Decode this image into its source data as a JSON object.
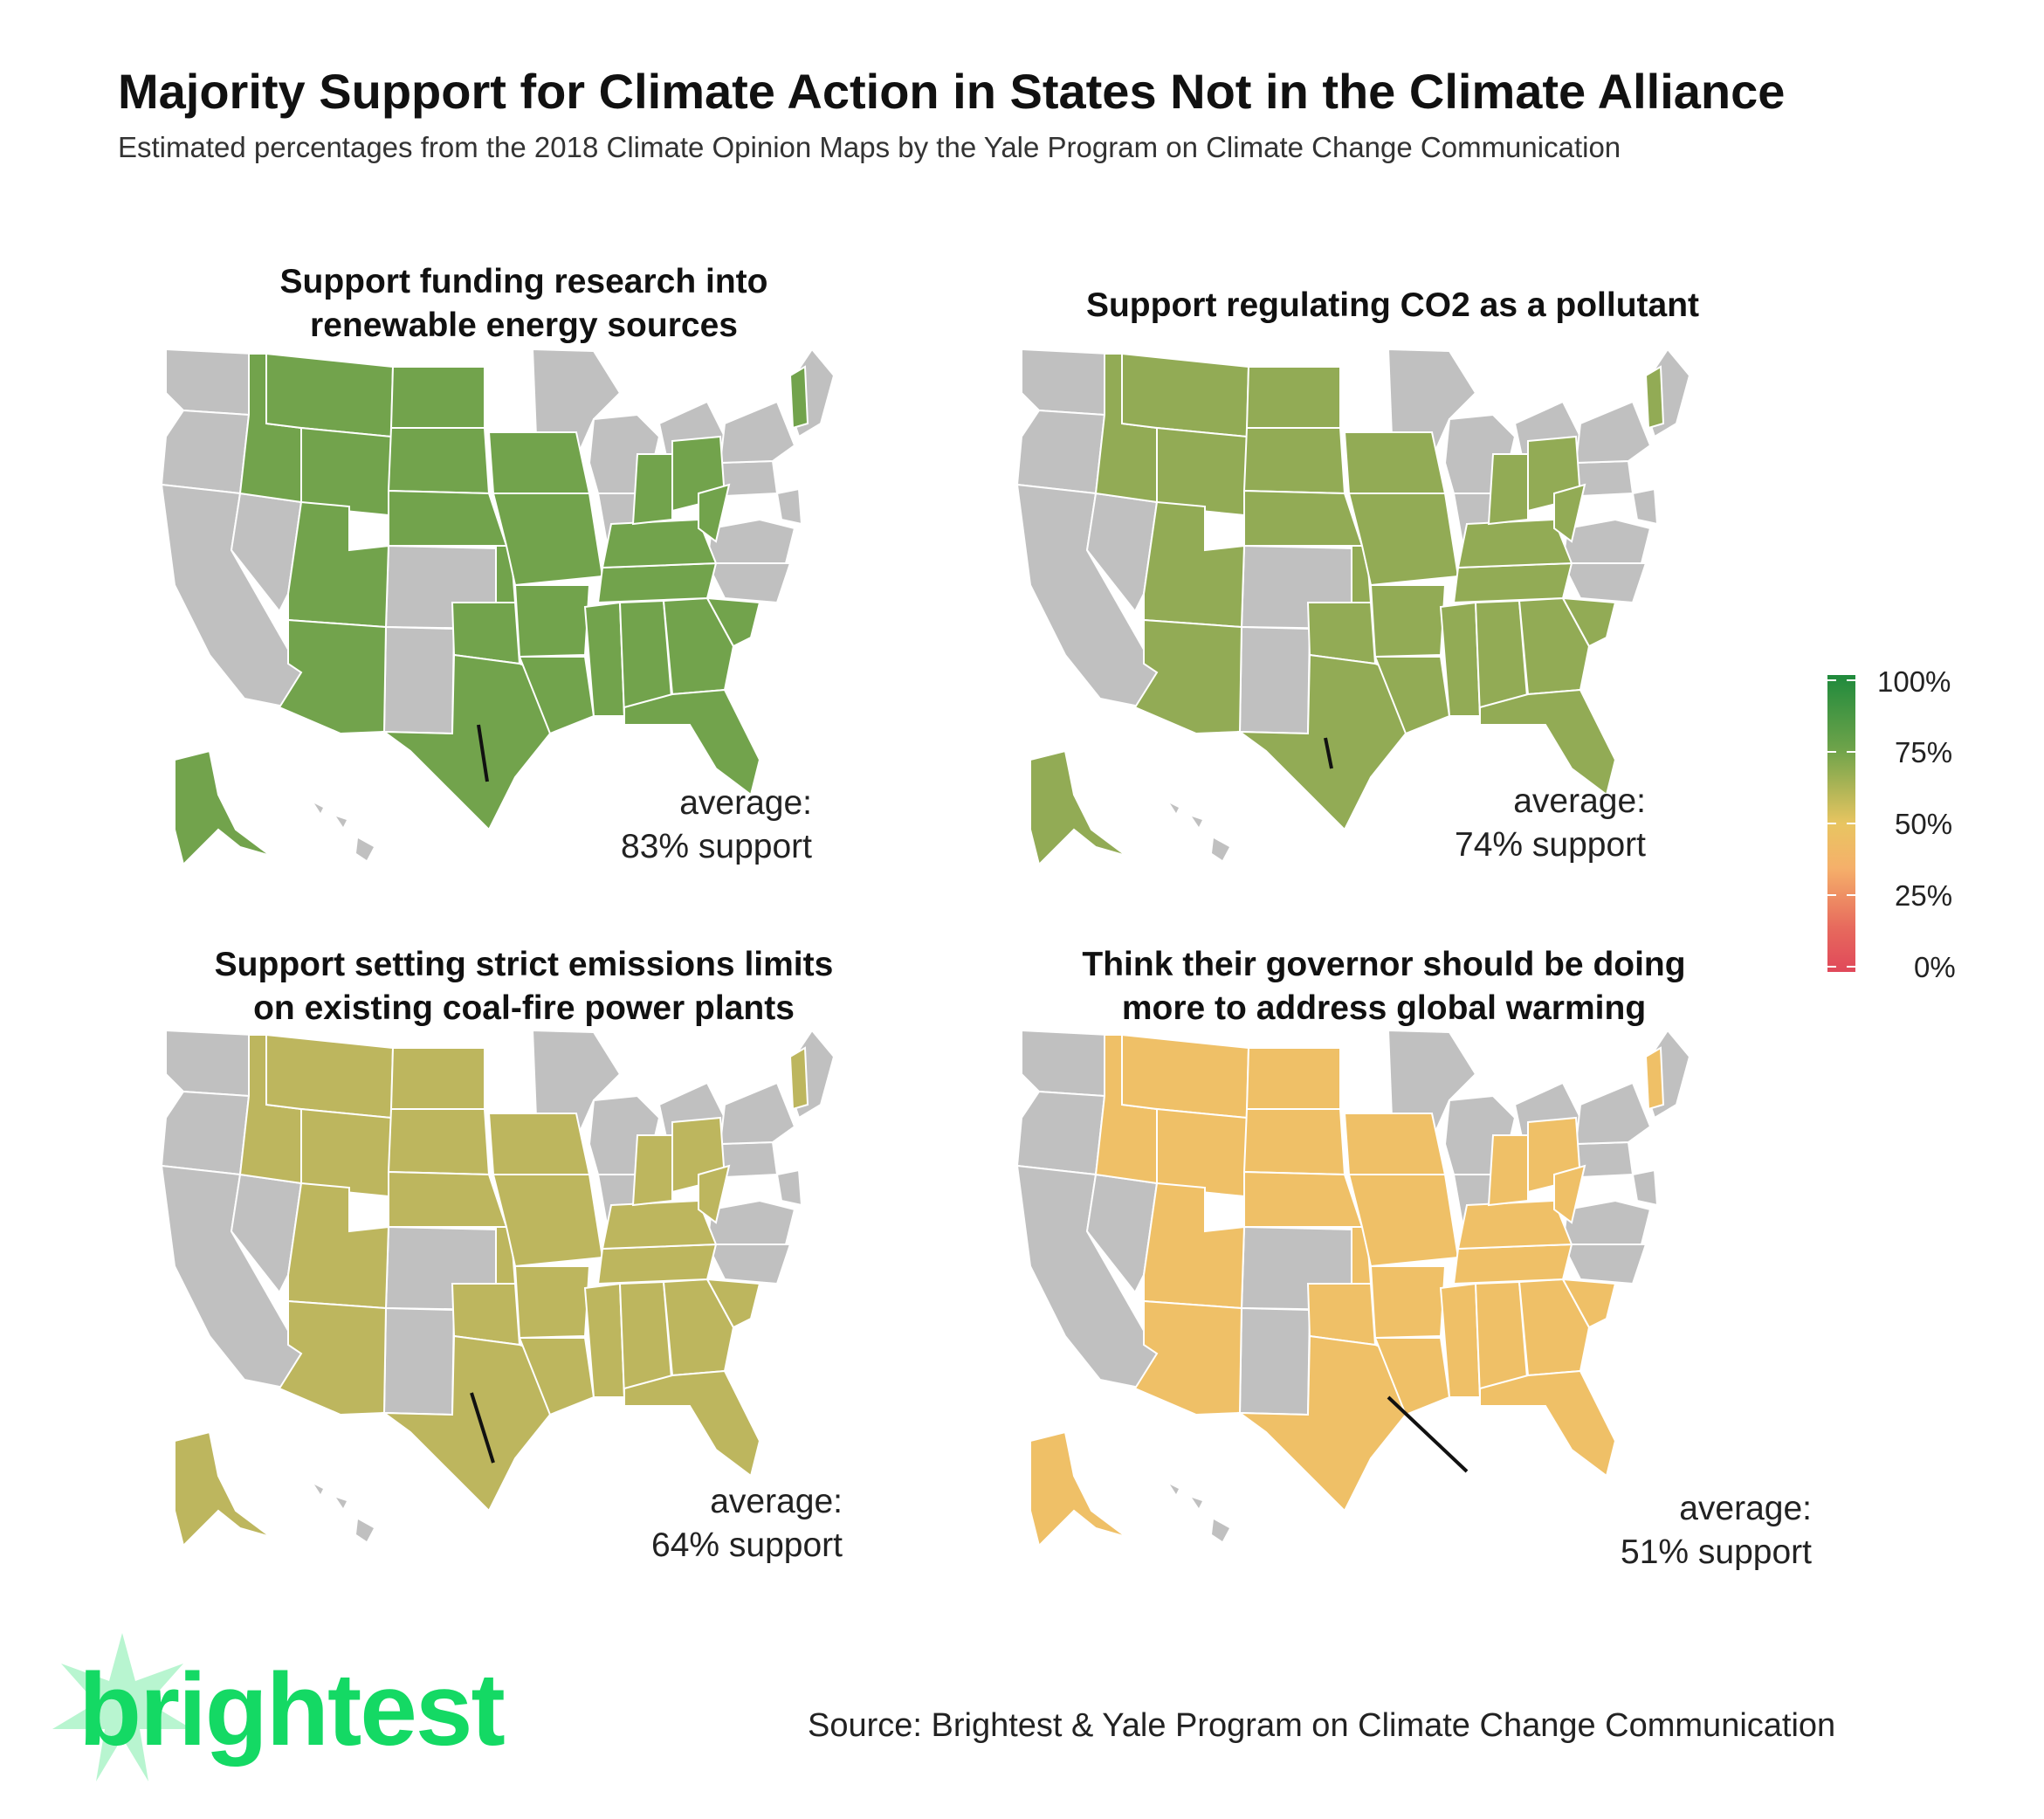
{
  "header": {
    "title": "Majority Support for Climate Action in States Not in the Climate Alliance",
    "subtitle": "Estimated percentages from the 2018 Climate Opinion Maps by the Yale Program on Climate Change Communication"
  },
  "panels": [
    {
      "title_line1": "Support funding research into",
      "title_line2": "renewable energy sources",
      "average_label": "average:",
      "average_value": "83% support",
      "average_percent": 83,
      "fill_color": "#72a34c"
    },
    {
      "title_line1": "Support regulating CO2 as a pollutant",
      "title_line2": "",
      "average_label": "average:",
      "average_value": "74% support",
      "average_percent": 74,
      "fill_color": "#92ab55"
    },
    {
      "title_line1": "Support setting strict emissions limits",
      "title_line2": "on existing coal-fire power plants",
      "average_label": "average:",
      "average_value": "64% support",
      "average_percent": 64,
      "fill_color": "#bdb65e"
    },
    {
      "title_line1": "Think their governor should be doing",
      "title_line2": "more to address global warming",
      "average_label": "average:",
      "average_value": "51% support",
      "average_percent": 51,
      "fill_color": "#efc067"
    }
  ],
  "legend": {
    "labels": [
      "100%",
      "75%",
      "50%",
      "25%",
      "0%"
    ]
  },
  "colors": {
    "non_member_fill": "#c0c0c0",
    "brand_green": "#14d964"
  },
  "footer": {
    "logo": "brightest",
    "source": "Source: Brightest & Yale Program on Climate Change Communication"
  }
}
